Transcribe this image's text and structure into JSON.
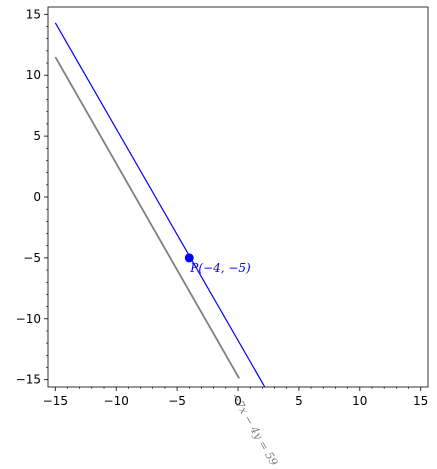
{
  "chart_data": {
    "type": "line",
    "title": "",
    "xlabel": "",
    "ylabel": "",
    "xlim": [
      -15.6,
      15.6
    ],
    "ylim": [
      -15.6,
      15.6
    ],
    "grid": false,
    "legend": "none",
    "x_ticks": [
      -15,
      -10,
      -5,
      0,
      5,
      10,
      15
    ],
    "y_ticks": [
      -15,
      -10,
      -5,
      0,
      5,
      10,
      15
    ],
    "x_tick_labels": [
      "−15",
      "−10",
      "−5",
      "0",
      "5",
      "10",
      "15"
    ],
    "y_tick_labels": [
      "−15",
      "−10",
      "−5",
      "0",
      "5",
      "10",
      "15"
    ],
    "series": [
      {
        "color": "#808080",
        "x": [
          -15,
          0.1
        ],
        "y": [
          11.5,
          -14.9
        ]
      },
      {
        "color": "#0000ff",
        "x": [
          -15,
          2.2
        ],
        "y": [
          14.3,
          -15.6
        ]
      }
    ],
    "points": [
      {
        "x": -4,
        "y": -5,
        "color": "#0000ff"
      }
    ],
    "annotations": {
      "point_label": "P(−4, −5)",
      "point_label_color": "#0000ff",
      "line_label": "−7x − 4y = 59",
      "line_label_color": "#808080"
    }
  }
}
